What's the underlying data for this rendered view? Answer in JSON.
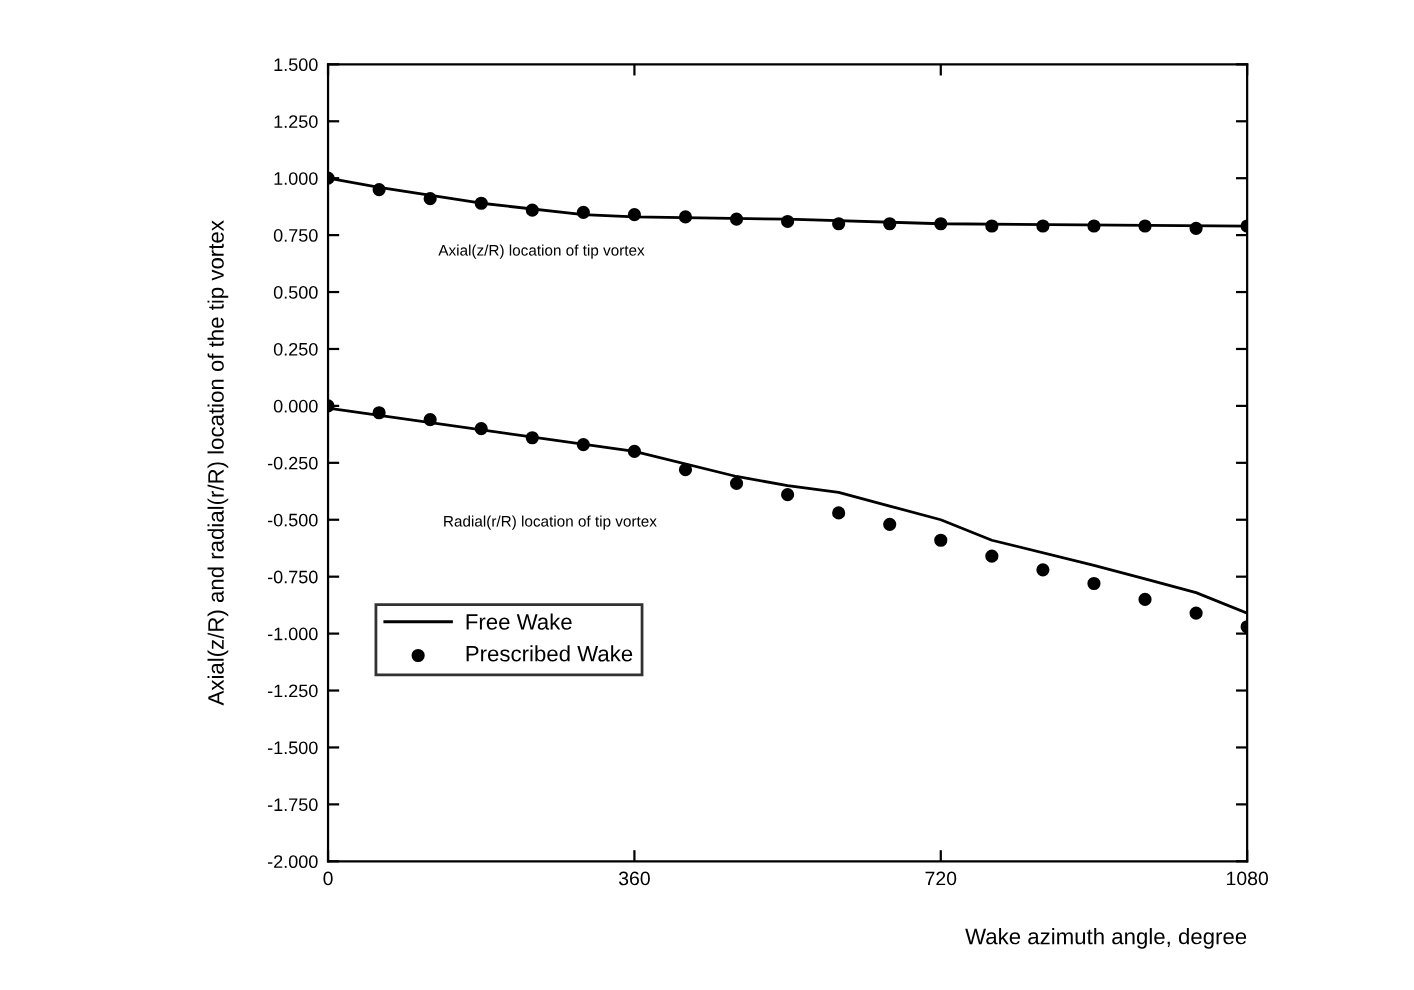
{
  "chart_data": {
    "type": "line",
    "xlabel": "Wake azimuth angle, degree",
    "ylabel": "Axial(z/R) and radial(r/R) location of the tip vortex",
    "xlim": [
      0,
      1080
    ],
    "xticks": [
      0,
      360,
      720,
      1080
    ],
    "ylim": [
      -2.0,
      1.5
    ],
    "yticks": [
      {
        "value": -2.0,
        "label": "-2.000"
      },
      {
        "value": -1.75,
        "label": "-1.750"
      },
      {
        "value": -1.5,
        "label": "-1.500"
      },
      {
        "value": -1.25,
        "label": "-1.250"
      },
      {
        "value": -1.0,
        "label": "-1.000"
      },
      {
        "value": -0.75,
        "label": "-0.750"
      },
      {
        "value": -0.5,
        "label": "-0.500"
      },
      {
        "value": -0.25,
        "label": "-0.250"
      },
      {
        "value": 0,
        "label": "0.000"
      },
      {
        "value": 0.25,
        "label": "0.250"
      },
      {
        "value": 0.5,
        "label": "0.500"
      },
      {
        "value": 0.75,
        "label": "0.750"
      },
      {
        "value": 1.0,
        "label": "1.000"
      },
      {
        "value": 1.25,
        "label": "1.250"
      },
      {
        "value": 1.5,
        "label": "1.500"
      }
    ],
    "grid": false,
    "legend": "bottom left",
    "series": [
      {
        "name": "Free Wake",
        "color": "#000000",
        "line_style": "solid",
        "marker": "none",
        "x": [
          0,
          60,
          180,
          300,
          360,
          540,
          720,
          1080
        ],
        "values": [
          1.0,
          0.96,
          0.89,
          0.84,
          0.83,
          0.82,
          0.8,
          0.79
        ]
      },
      {
        "color": "#000000",
        "line_style": "solid",
        "marker": "none",
        "x": [
          0,
          360,
          480,
          540,
          600,
          660,
          720,
          780,
          900,
          960,
          1020,
          1080
        ],
        "values": [
          -0.01,
          -0.2,
          -0.31,
          -0.35,
          -0.38,
          -0.44,
          -0.5,
          -0.59,
          -0.7,
          -0.76,
          -0.82,
          -0.91
        ]
      },
      {
        "name": "Prescribed Wake",
        "type": "scatter",
        "color": "#000000",
        "marker": "circle",
        "x": [
          0,
          60,
          120,
          180,
          240,
          300,
          360,
          420,
          480,
          540,
          600,
          660,
          720,
          780,
          840,
          900,
          960,
          1020,
          1080
        ],
        "values": [
          1.0,
          0.95,
          0.91,
          0.89,
          0.86,
          0.85,
          0.84,
          0.83,
          0.82,
          0.81,
          0.8,
          0.8,
          0.8,
          0.79,
          0.79,
          0.79,
          0.79,
          0.78,
          0.79
        ]
      },
      {
        "type": "scatter",
        "color": "#000000",
        "marker": "circle",
        "x": [
          0,
          60,
          120,
          180,
          240,
          300,
          360,
          420,
          480,
          540,
          600,
          660,
          720,
          780,
          840,
          900,
          960,
          1020,
          1080
        ],
        "values": [
          0.0,
          -0.03,
          -0.06,
          -0.1,
          -0.14,
          -0.17,
          -0.2,
          -0.28,
          -0.34,
          -0.39,
          -0.47,
          -0.52,
          -0.59,
          -0.66,
          -0.72,
          -0.78,
          -0.85,
          -0.91,
          -0.97
        ]
      }
    ],
    "annotations": [
      "Axial(z/R) location of tip vortex",
      "Radial(r/R) location of tip vortex"
    ]
  }
}
